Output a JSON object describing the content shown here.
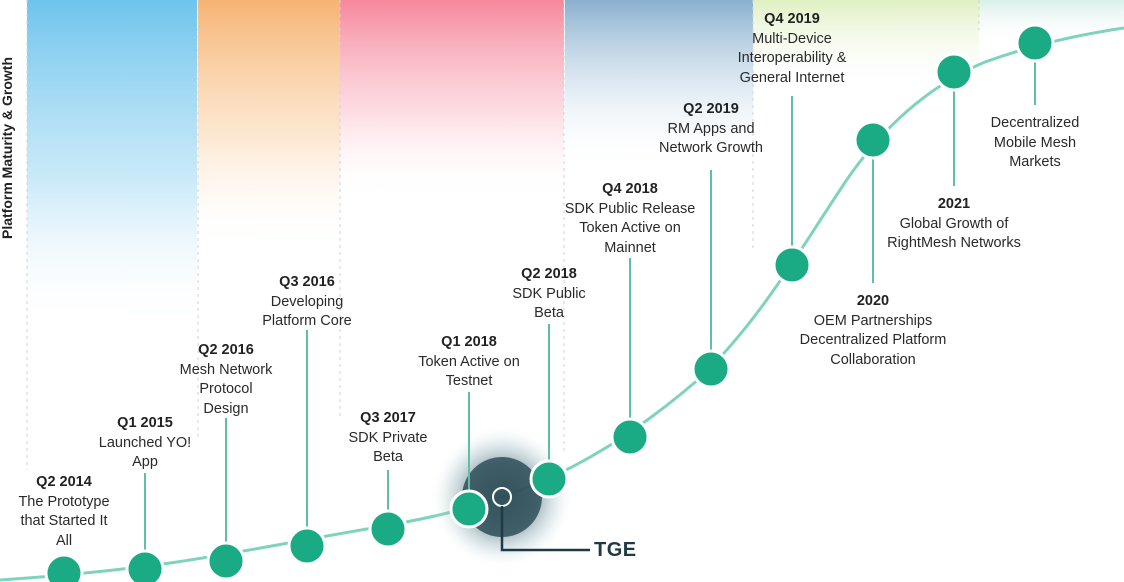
{
  "vertical_axis_label": "Platform Maturity & Growth",
  "tge_label": "TGE",
  "colors": {
    "curve": "#7fd3bd",
    "node": "#1aaa84",
    "node_stroke": "#ffffff",
    "connector": "#5fbfa6",
    "tge_halo": "#2f4f58",
    "tge_line": "#1f3a44",
    "band_blue": "#6ec4ec",
    "band_orange": "#f6b372",
    "band_pink": "#f6889c",
    "band_steel": "#8ab0cf",
    "band_lime": "#dff0c2",
    "band_mint": "#d8f0ea"
  },
  "milestones": [
    {
      "id": "q2-2014",
      "period": "Q2 2014",
      "lines": [
        "The Prototype",
        "that Started It",
        "All"
      ]
    },
    {
      "id": "q1-2015",
      "period": "Q1 2015",
      "lines": [
        "Launched YO!",
        "App"
      ]
    },
    {
      "id": "q2-2016",
      "period": "Q2 2016",
      "lines": [
        "Mesh Network",
        "Protocol",
        "Design"
      ]
    },
    {
      "id": "q3-2016",
      "period": "Q3 2016",
      "lines": [
        "Developing",
        "Platform Core"
      ]
    },
    {
      "id": "q3-2017",
      "period": "Q3 2017",
      "lines": [
        "SDK Private",
        "Beta"
      ]
    },
    {
      "id": "q1-2018",
      "period": "Q1 2018",
      "lines": [
        "Token Active on",
        "Testnet"
      ]
    },
    {
      "id": "q2-2018",
      "period": "Q2 2018",
      "lines": [
        "SDK Public",
        "Beta"
      ]
    },
    {
      "id": "q4-2018",
      "period": "Q4 2018",
      "lines": [
        "SDK Public Release",
        "Token Active on",
        "Mainnet"
      ]
    },
    {
      "id": "q2-2019",
      "period": "Q2 2019",
      "lines": [
        "RM Apps and",
        "Network Growth"
      ]
    },
    {
      "id": "q4-2019",
      "period": "Q4 2019",
      "lines": [
        "Multi-Device",
        "Interoperability &",
        "General Internet"
      ]
    },
    {
      "id": "2020",
      "period": "2020",
      "lines": [
        "OEM Partnerships",
        "Decentralized Platform",
        "Collaboration"
      ]
    },
    {
      "id": "2021",
      "period": "2021",
      "lines": [
        "Global Growth of",
        "RightMesh Networks"
      ]
    },
    {
      "id": "future",
      "period": "",
      "lines": [
        "Decentralized",
        "Mobile Mesh",
        "Markets"
      ]
    }
  ]
}
